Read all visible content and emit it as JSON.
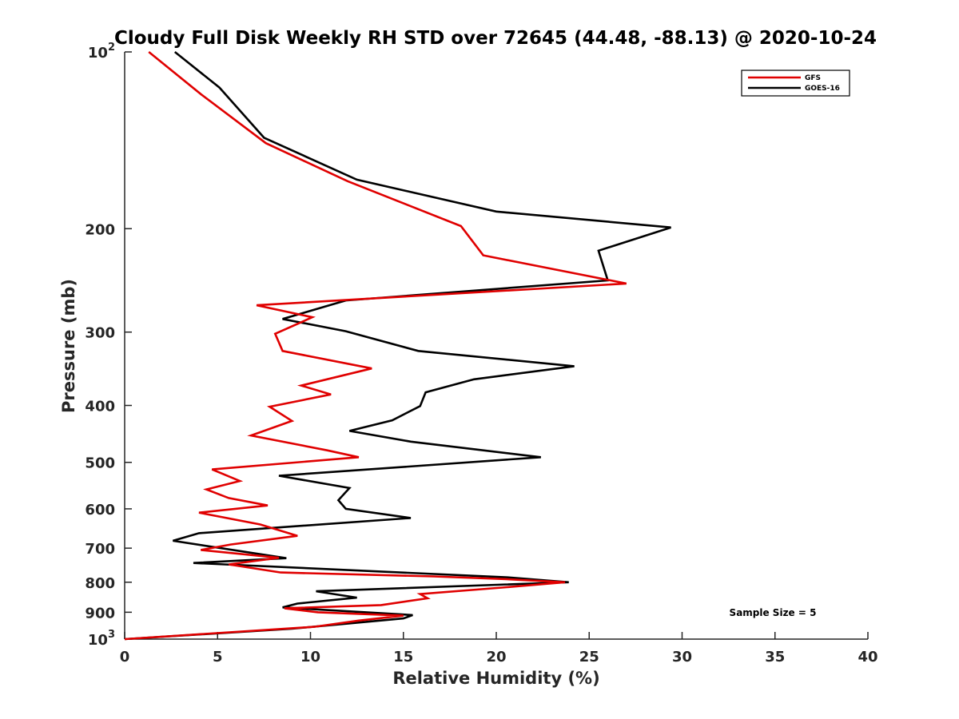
{
  "chart_data": {
    "type": "line",
    "title": "Cloudy Full Disk Weekly RH STD over 72645 (44.48, -88.13) @ 2020-10-24",
    "xlabel": "Relative Humidity (%)",
    "ylabel": "Pressure (mb)",
    "xlim": [
      0,
      40
    ],
    "ylim": [
      100,
      1000
    ],
    "yscale": "log",
    "y_reversed": true,
    "x_ticks": [
      "0",
      "5",
      "10",
      "15",
      "20",
      "25",
      "30",
      "35",
      "40"
    ],
    "y_ticks": [
      {
        "value": 100,
        "base": "10",
        "exp": "2"
      },
      {
        "value": 200,
        "base": "200",
        "exp": ""
      },
      {
        "value": 300,
        "base": "300",
        "exp": ""
      },
      {
        "value": 400,
        "base": "400",
        "exp": ""
      },
      {
        "value": 500,
        "base": "500",
        "exp": ""
      },
      {
        "value": 600,
        "base": "600",
        "exp": ""
      },
      {
        "value": 700,
        "base": "700",
        "exp": ""
      },
      {
        "value": 800,
        "base": "800",
        "exp": ""
      },
      {
        "value": 900,
        "base": "900",
        "exp": ""
      },
      {
        "value": 1000,
        "base": "10",
        "exp": "3"
      }
    ],
    "grid": false,
    "legend_position": "top-right",
    "annotation": "Sample Size = 5",
    "series": [
      {
        "name": "GFS",
        "color": "#e00000",
        "points": [
          [
            1.3,
            100
          ],
          [
            4.1,
            118
          ],
          [
            7.6,
            143
          ],
          [
            12.0,
            166
          ],
          [
            18.1,
            198
          ],
          [
            19.3,
            222
          ],
          [
            27.0,
            248
          ],
          [
            7.1,
            270
          ],
          [
            10.1,
            283
          ],
          [
            8.1,
            302
          ],
          [
            8.5,
            323
          ],
          [
            13.3,
            346
          ],
          [
            9.5,
            370
          ],
          [
            11.1,
            383
          ],
          [
            7.8,
            402
          ],
          [
            9.0,
            425
          ],
          [
            6.8,
            450
          ],
          [
            10.9,
            477
          ],
          [
            12.6,
            490
          ],
          [
            4.7,
            514
          ],
          [
            6.2,
            538
          ],
          [
            4.4,
            556
          ],
          [
            5.6,
            575
          ],
          [
            7.7,
            592
          ],
          [
            4.0,
            609
          ],
          [
            7.3,
            638
          ],
          [
            9.3,
            667
          ],
          [
            5.7,
            690
          ],
          [
            4.1,
            705
          ],
          [
            8.3,
            727
          ],
          [
            5.6,
            746
          ],
          [
            8.4,
            770
          ],
          [
            16.6,
            782
          ],
          [
            20.4,
            790
          ],
          [
            23.7,
            800
          ],
          [
            20.3,
            817
          ],
          [
            15.9,
            838
          ],
          [
            16.3,
            852
          ],
          [
            13.8,
            875
          ],
          [
            8.6,
            886
          ],
          [
            10.4,
            900
          ],
          [
            15.0,
            912
          ],
          [
            12.6,
            930
          ],
          [
            10.2,
            953
          ],
          [
            0.0,
            1000
          ]
        ]
      },
      {
        "name": "GOES-16",
        "color": "#000000",
        "points": [
          [
            2.7,
            100
          ],
          [
            5.1,
            115
          ],
          [
            7.5,
            140
          ],
          [
            12.5,
            165
          ],
          [
            20.0,
            187
          ],
          [
            29.4,
            199
          ],
          [
            25.5,
            218
          ],
          [
            26.0,
            245
          ],
          [
            11.9,
            265
          ],
          [
            8.5,
            285
          ],
          [
            11.9,
            299
          ],
          [
            15.8,
            323
          ],
          [
            24.2,
            343
          ],
          [
            18.8,
            361
          ],
          [
            16.2,
            380
          ],
          [
            15.9,
            401
          ],
          [
            14.4,
            424
          ],
          [
            12.1,
            442
          ],
          [
            15.4,
            461
          ],
          [
            22.4,
            490
          ],
          [
            8.3,
            527
          ],
          [
            12.1,
            553
          ],
          [
            11.5,
            580
          ],
          [
            11.9,
            600
          ],
          [
            15.4,
            622
          ],
          [
            4.0,
            660
          ],
          [
            2.6,
            680
          ],
          [
            8.7,
            728
          ],
          [
            3.7,
            742
          ],
          [
            20.6,
            785
          ],
          [
            23.9,
            800
          ],
          [
            10.3,
            829
          ],
          [
            12.5,
            850
          ],
          [
            9.3,
            870
          ],
          [
            8.5,
            883
          ],
          [
            15.5,
            910
          ],
          [
            15.0,
            922
          ],
          [
            9.0,
            960
          ],
          [
            0.0,
            1000
          ]
        ]
      }
    ]
  }
}
